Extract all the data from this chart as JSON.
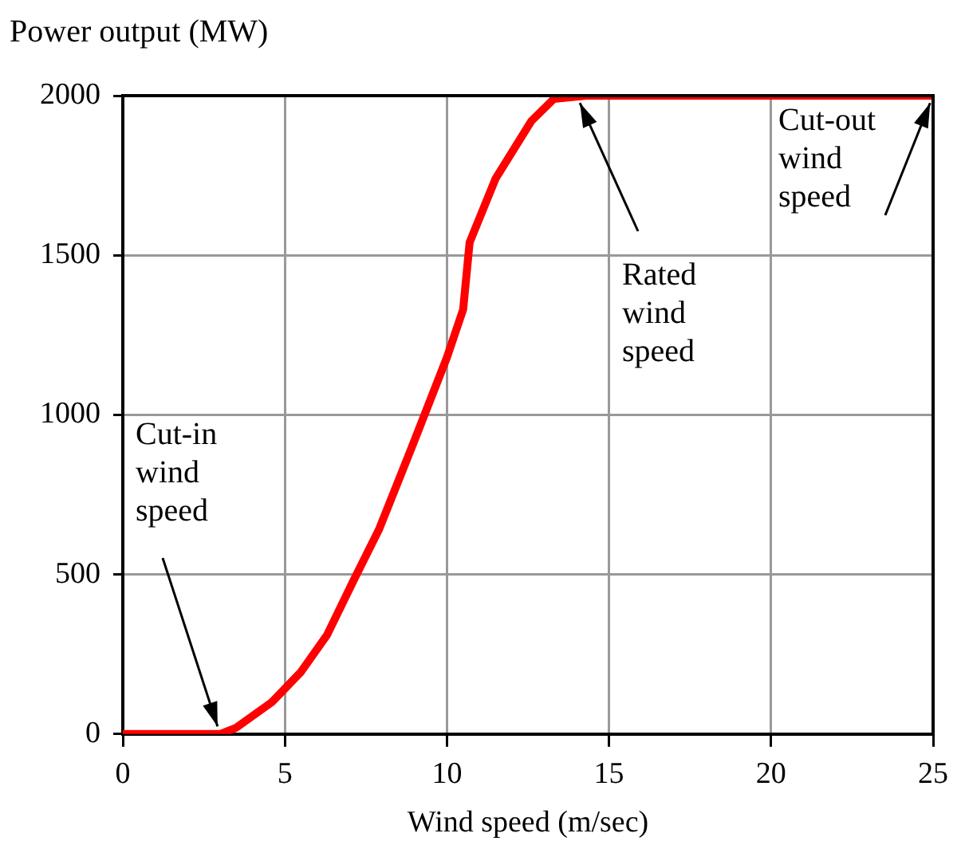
{
  "chart_data": {
    "type": "line",
    "ylabel": "Power output (MW)",
    "xlabel": "Wind speed (m/sec)",
    "x": [
      0,
      3,
      3.5,
      4.6,
      5.5,
      6.3,
      7.1,
      7.9,
      9.0,
      10.0,
      10.5,
      10.7,
      11.5,
      12.6,
      13.3,
      14.3,
      25
    ],
    "series": [
      {
        "color": "#ff0000",
        "values": [
          0,
          0,
          20,
          100,
          195,
          310,
          477,
          640,
          920,
          1180,
          1330,
          1540,
          1740,
          1920,
          1990,
          2000,
          2000
        ]
      }
    ],
    "xlim": [
      0,
      25
    ],
    "xticks": [
      0,
      5,
      10,
      15,
      20,
      25
    ],
    "ylim": [
      0,
      2000
    ],
    "yticks": [
      0,
      500,
      1000,
      1500,
      2000
    ],
    "grid": true,
    "legend": false,
    "marker": "none",
    "line_style": "solid",
    "annotations": [
      {
        "text": "Cut-in wind speed",
        "x": 3,
        "y": 0
      },
      {
        "text": "Rated wind speed",
        "x": 14,
        "y": 2000
      },
      {
        "text": "Cut-out wind speed",
        "x": 25,
        "y": 2000
      }
    ]
  }
}
